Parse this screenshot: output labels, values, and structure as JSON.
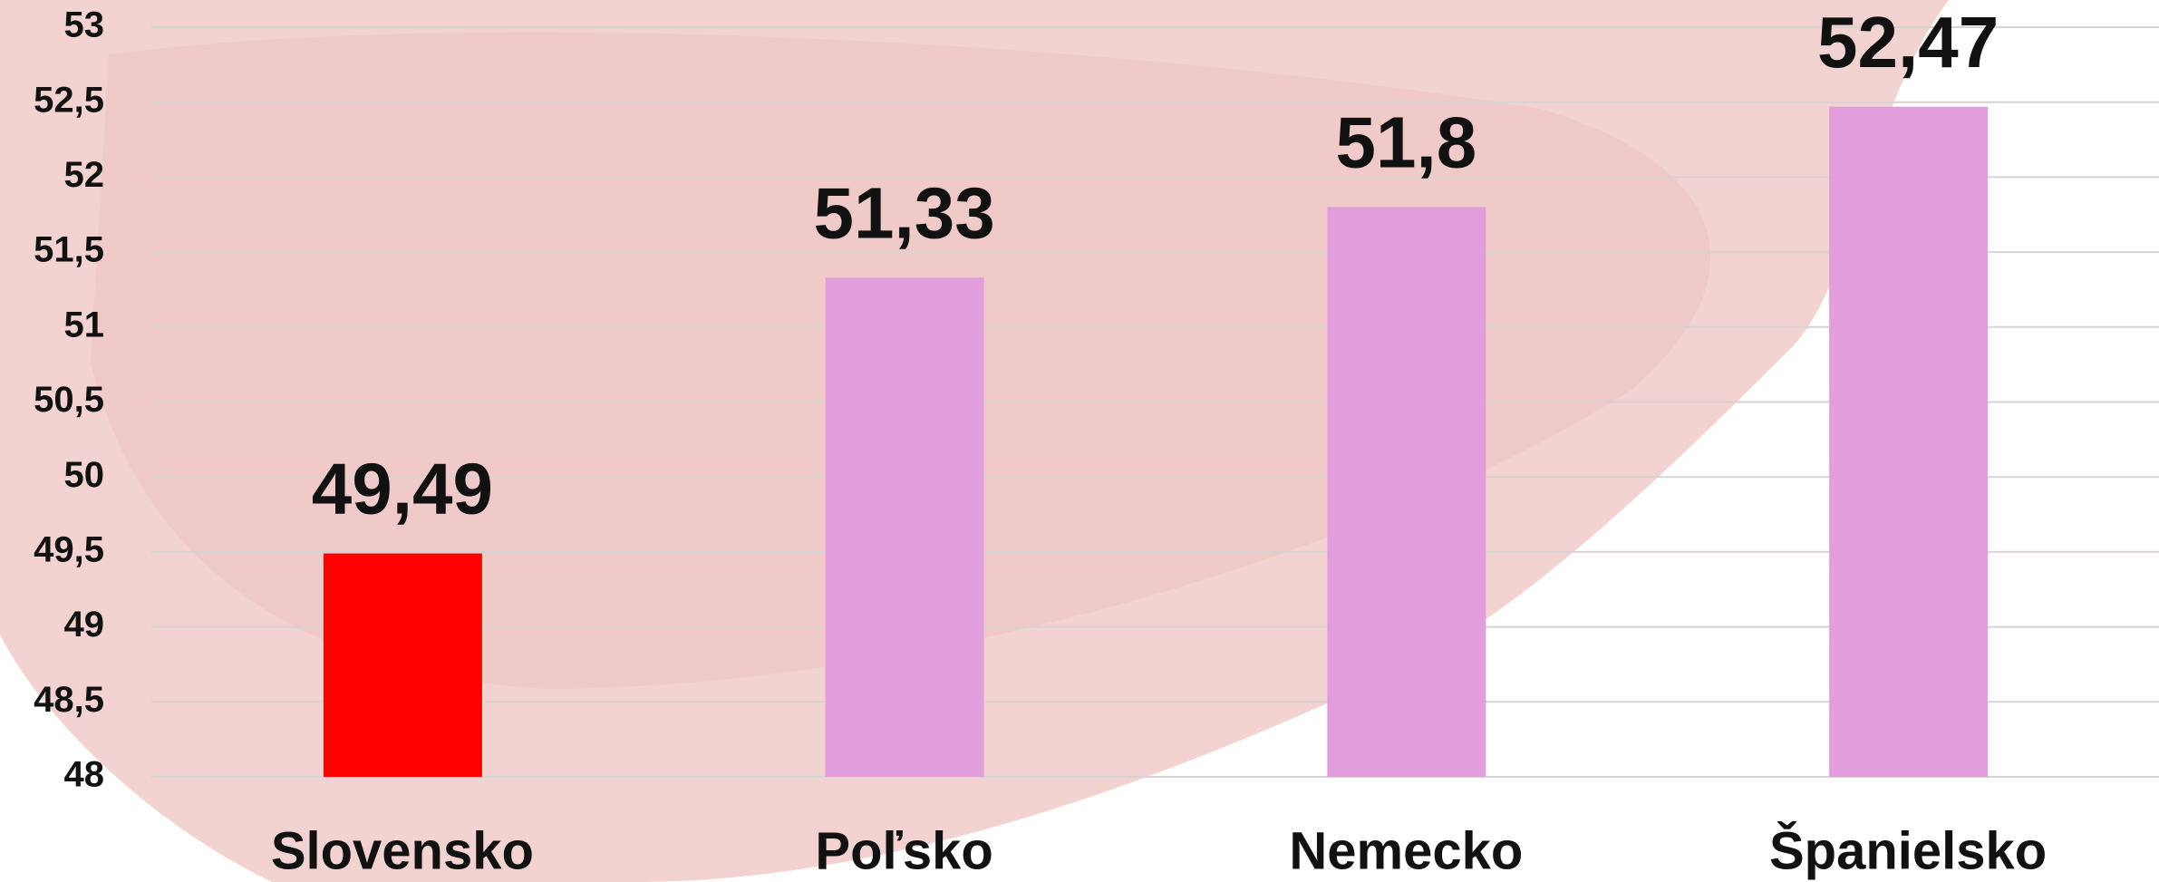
{
  "chart_data": {
    "type": "bar",
    "categories": [
      "Slovensko",
      "Poľsko",
      "Nemecko",
      "Španielsko"
    ],
    "values": [
      49.49,
      51.33,
      51.8,
      52.47
    ],
    "value_labels": [
      "49,49",
      "51,33",
      "51,8",
      "52,47"
    ],
    "colors": [
      "#ff0000",
      "#e29ddc",
      "#e29ddc",
      "#e29ddc"
    ],
    "ylim": [
      48,
      53
    ],
    "yticks": [
      48,
      {
        "value": 48.5,
        "label": "48,5"
      },
      49,
      {
        "value": 49.5,
        "label": "49,5"
      },
      50,
      {
        "value": 50.5,
        "label": "50,5"
      },
      51,
      {
        "value": 51.5,
        "label": "51,5"
      },
      52,
      {
        "value": 52.5,
        "label": "52,5"
      },
      53
    ],
    "grid": true
  }
}
